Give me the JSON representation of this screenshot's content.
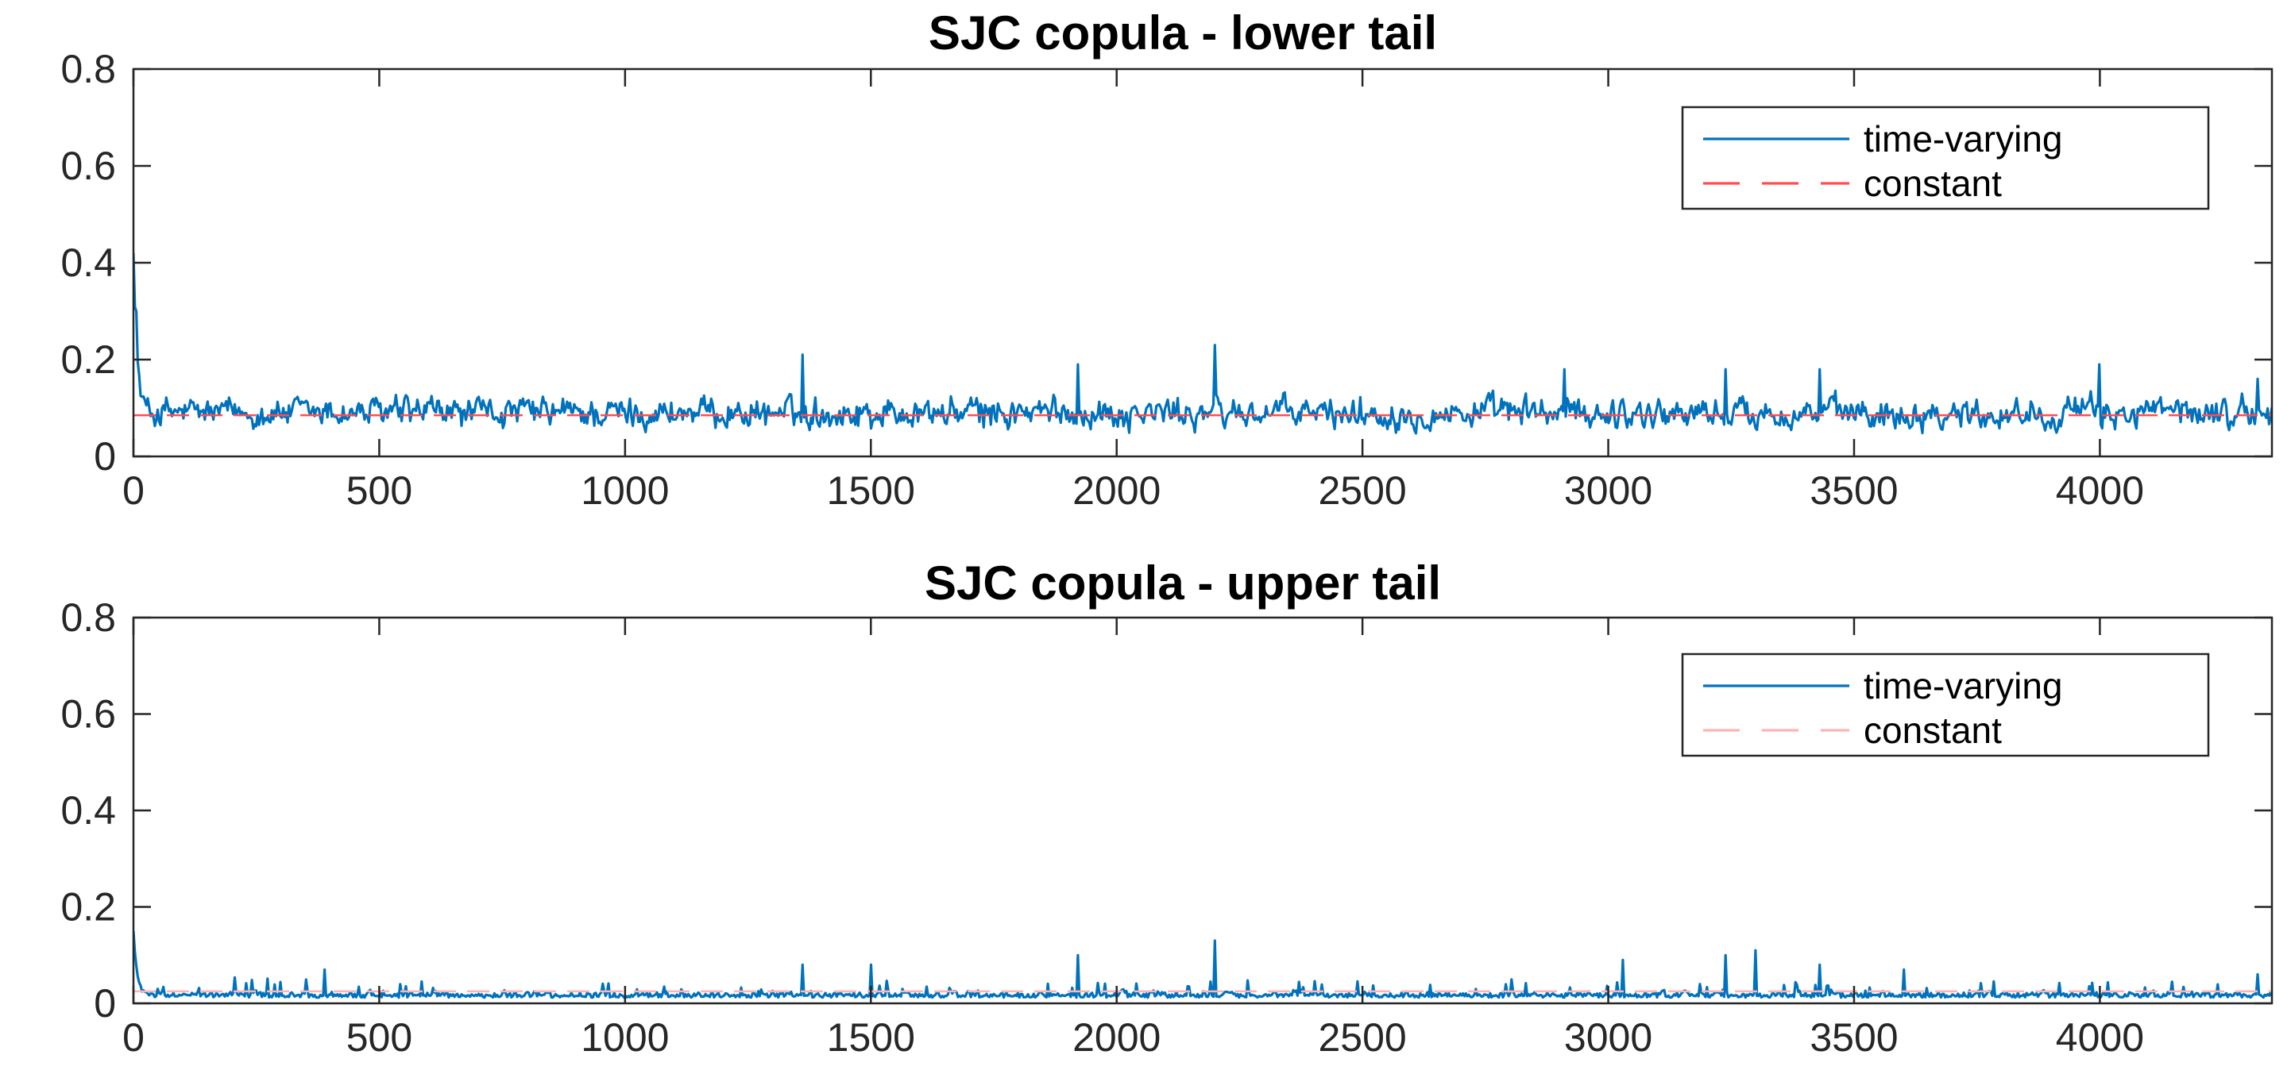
{
  "chart_data": [
    {
      "type": "line",
      "title": "SJC copula - lower tail",
      "xlabel": "",
      "ylabel": "",
      "xlim": [
        0,
        4350
      ],
      "ylim": [
        0,
        0.8
      ],
      "xticks": [
        "0",
        "500",
        "1000",
        "1500",
        "2000",
        "2500",
        "3000",
        "3500",
        "4000"
      ],
      "yticks": [
        "0",
        "0.2",
        "0.4",
        "0.6",
        "0.8"
      ],
      "grid": false,
      "legend_position": "top-right",
      "series": [
        {
          "name": "time-varying",
          "color": "#0072BD",
          "style": "solid",
          "n_points": 4350,
          "description_values": {
            "start": 0.42,
            "mean": 0.09,
            "typical_min": 0.02,
            "typical_max": 0.17
          },
          "peaks": [
            [
              0,
              0.42
            ],
            [
              5,
              0.3
            ],
            [
              1360,
              0.21
            ],
            [
              1920,
              0.19
            ],
            [
              2200,
              0.23
            ],
            [
              2910,
              0.18
            ],
            [
              3240,
              0.18
            ],
            [
              3430,
              0.18
            ],
            [
              4000,
              0.19
            ],
            [
              4320,
              0.16
            ]
          ]
        },
        {
          "name": "constant",
          "color": "#FF4C4C",
          "style": "dashed",
          "values": [
            0.085
          ]
        }
      ]
    },
    {
      "type": "line",
      "title": "SJC copula - upper tail",
      "xlabel": "",
      "ylabel": "",
      "xlim": [
        0,
        4350
      ],
      "ylim": [
        0,
        0.8
      ],
      "xticks": [
        "0",
        "500",
        "1000",
        "1500",
        "2000",
        "2500",
        "3000",
        "3500",
        "4000"
      ],
      "yticks": [
        "0",
        "0.2",
        "0.4",
        "0.6",
        "0.8"
      ],
      "grid": false,
      "legend_position": "top-right",
      "series": [
        {
          "name": "time-varying",
          "color": "#0072BD",
          "style": "solid",
          "n_points": 4350,
          "description_values": {
            "start": 0.15,
            "mean": 0.02,
            "typical_min": 0.0,
            "typical_max": 0.05
          },
          "peaks": [
            [
              0,
              0.15
            ],
            [
              390,
              0.07
            ],
            [
              1360,
              0.08
            ],
            [
              1500,
              0.08
            ],
            [
              1920,
              0.1
            ],
            [
              2200,
              0.13
            ],
            [
              3030,
              0.09
            ],
            [
              3240,
              0.1
            ],
            [
              3300,
              0.11
            ],
            [
              3430,
              0.08
            ],
            [
              3600,
              0.07
            ],
            [
              4320,
              0.06
            ]
          ]
        },
        {
          "name": "constant",
          "color": "#FFB3B3",
          "style": "dashed",
          "values": [
            0.025
          ]
        }
      ]
    }
  ]
}
